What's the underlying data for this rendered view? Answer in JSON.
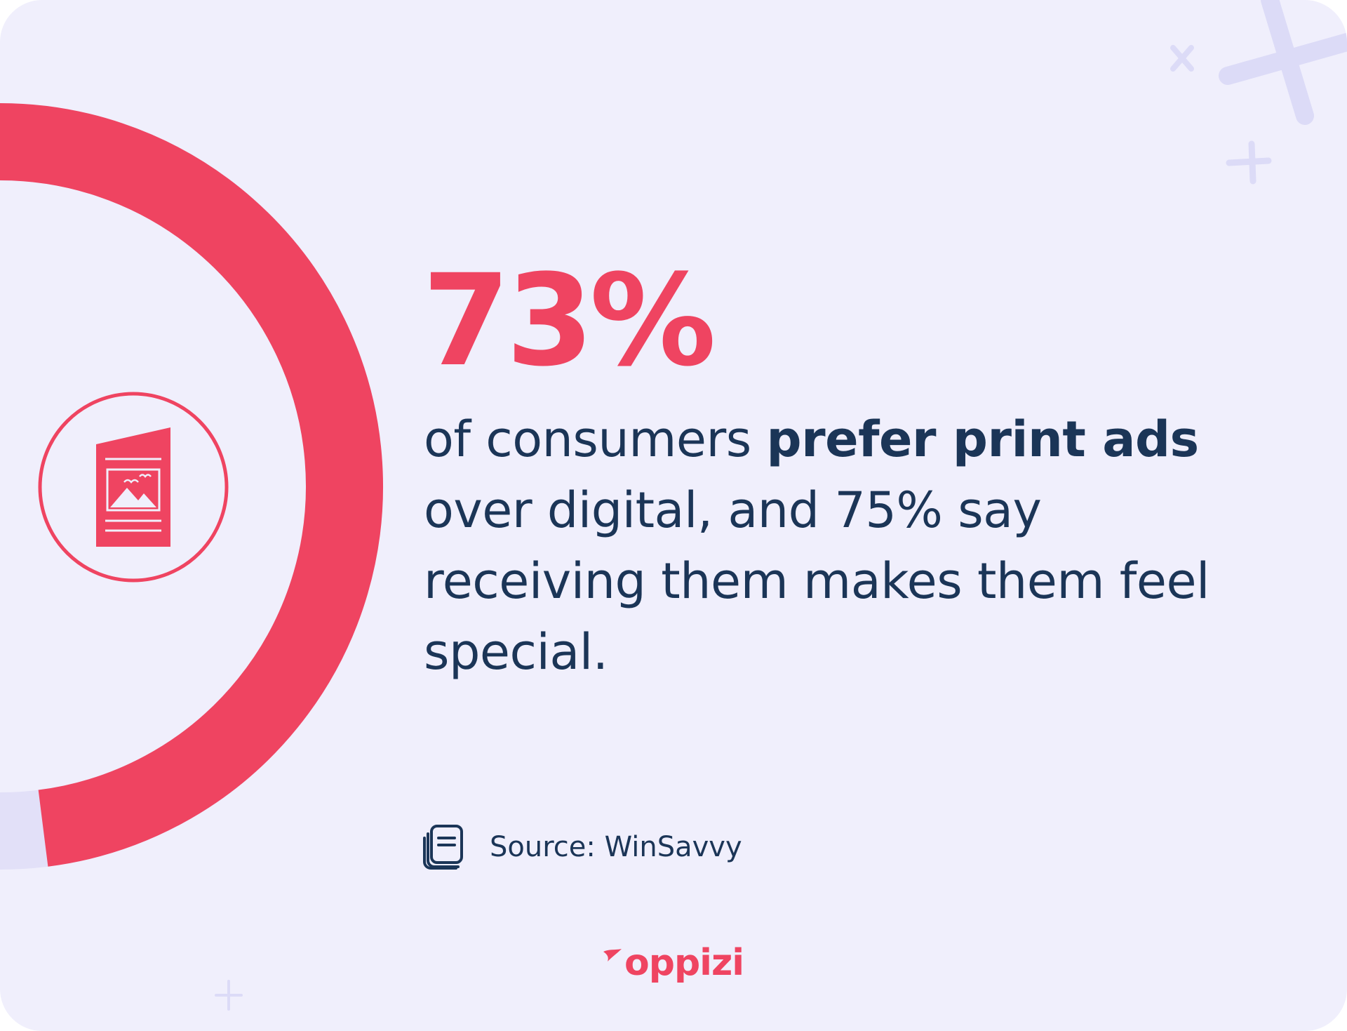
{
  "stat": {
    "value": "73%",
    "fraction": 0.73
  },
  "description": {
    "part1": "of consumers ",
    "bold": "prefer print ads",
    "part2": " over digital, and 75% say receiving them makes them feel special."
  },
  "source": {
    "icon": "document-stack-icon",
    "label": "Source: WinSavvy"
  },
  "logo": {
    "text": "oppizi"
  },
  "badge": {
    "icon": "brochure-flyer-icon"
  },
  "colors": {
    "accent": "#ef4461",
    "text": "#1b3557",
    "background": "#f0effc",
    "track": "#e2e0f8",
    "decor": "#dcdbf7"
  }
}
